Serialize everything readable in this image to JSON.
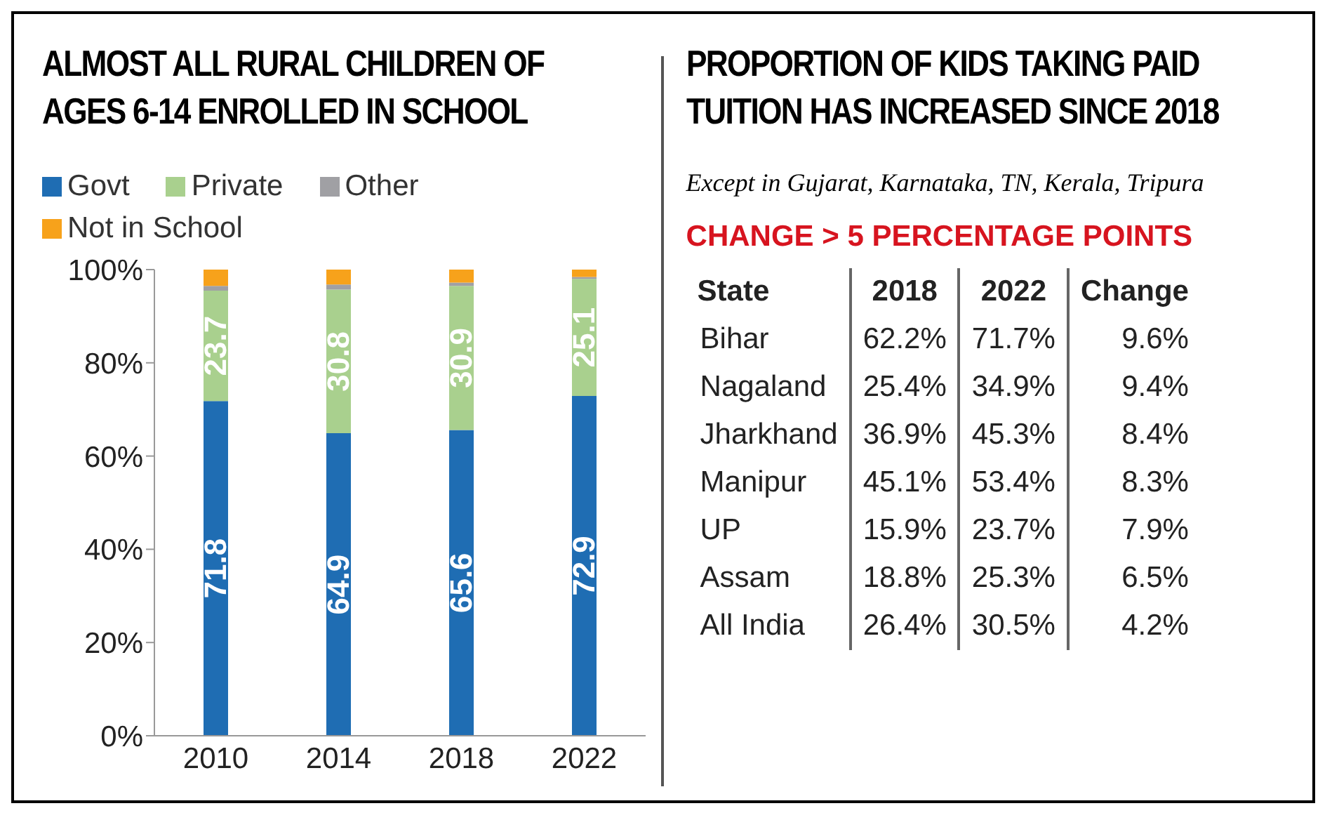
{
  "chart_data": [
    {
      "type": "bar",
      "title": "ALMOST ALL RURAL CHILDREN OF AGES 6-14 ENROLLED IN SCHOOL",
      "categories": [
        "2010",
        "2014",
        "2018",
        "2022"
      ],
      "stacked": true,
      "legend": "top left",
      "ylim": [
        0,
        100
      ],
      "yticks": [
        {
          "value": 0,
          "label": "0%"
        },
        {
          "value": 20,
          "label": "20%"
        },
        {
          "value": 40,
          "label": "40%"
        },
        {
          "value": 60,
          "label": "60%"
        },
        {
          "value": 80,
          "label": "80%"
        },
        {
          "value": 100,
          "label": "100%"
        }
      ],
      "series": [
        {
          "name": "Govt",
          "color": "#1f6db3",
          "values": [
            71.8,
            64.9,
            65.6,
            72.9
          ],
          "value_labels": [
            "71.8",
            "64.9",
            "65.6",
            "72.9"
          ]
        },
        {
          "name": "Private",
          "color": "#a9d08e",
          "values": [
            23.7,
            30.8,
            30.9,
            25.1
          ],
          "value_labels": [
            "23.7",
            "30.8",
            "30.9",
            "25.1"
          ]
        },
        {
          "name": "Other",
          "color": "#a0a0a4",
          "values": [
            1.0,
            1.1,
            0.7,
            0.4
          ]
        },
        {
          "name": "Not in School",
          "color": "#f7a21b",
          "values": [
            3.5,
            3.2,
            2.8,
            1.6
          ]
        }
      ]
    },
    {
      "type": "other",
      "title": "PROPORTION OF KIDS TAKING PAID TUITION HAS INCREASED SINCE 2018",
      "subtitle": "Except in Gujarat, Karnataka, TN, Kerala, Tripura",
      "annotations": [
        "CHANGE > 5 PERCENTAGE POINTS"
      ],
      "xlabel": "State",
      "categories": [
        "Bihar",
        "Nagaland",
        "Jharkhand",
        "Manipur",
        "UP",
        "Assam",
        "All India"
      ],
      "series": [
        {
          "name": "2018",
          "values": [
            62.2,
            25.4,
            36.9,
            45.1,
            15.9,
            18.8,
            26.4
          ],
          "value_labels": [
            "62.2%",
            "25.4%",
            "36.9%",
            "45.1%",
            "15.9%",
            "18.8%",
            "26.4%"
          ]
        },
        {
          "name": "2022",
          "values": [
            71.7,
            34.9,
            45.3,
            53.4,
            23.7,
            25.3,
            30.5
          ],
          "value_labels": [
            "71.7%",
            "34.9%",
            "45.3%",
            "53.4%",
            "23.7%",
            "25.3%",
            "30.5%"
          ]
        },
        {
          "name": "Change",
          "values": [
            9.6,
            9.4,
            8.4,
            8.3,
            7.9,
            6.5,
            4.2
          ],
          "value_labels": [
            "9.6%",
            "9.4%",
            "8.4%",
            "8.3%",
            "7.9%",
            "6.5%",
            "4.2%"
          ]
        }
      ]
    }
  ]
}
